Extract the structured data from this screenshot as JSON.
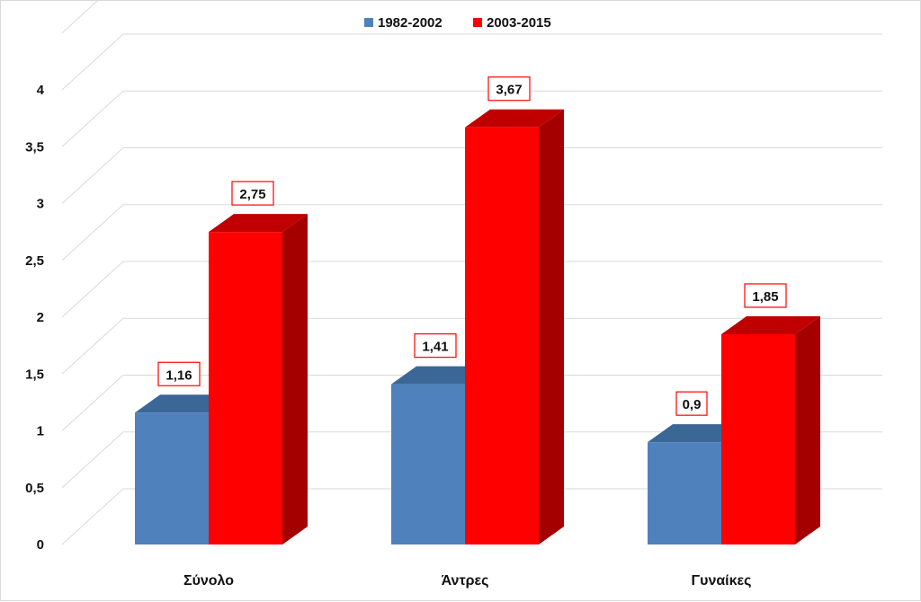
{
  "chart_data": {
    "type": "bar",
    "style": "3d-clustered-column",
    "categories": [
      "Σύνολο",
      "Άντρες",
      "Γυναίκες"
    ],
    "series": [
      {
        "name": "1982-2002",
        "values": [
          1.16,
          1.41,
          0.9
        ],
        "labels": [
          "1,16",
          "1,41",
          "0,9"
        ],
        "color": "#4f81bd",
        "top_color": "#3b6796",
        "side_color": "#385d8a"
      },
      {
        "name": "2003-2015",
        "values": [
          2.75,
          3.67,
          1.85
        ],
        "labels": [
          "2,75",
          "3,67",
          "1,85"
        ],
        "color": "#ff0000",
        "top_color": "#c00000",
        "side_color": "#a50000"
      }
    ],
    "ylim": [
      0,
      4
    ],
    "yticks": [
      0,
      0.5,
      1,
      1.5,
      2,
      2.5,
      3,
      3.5,
      4
    ],
    "ytick_labels": [
      "0",
      "0,5",
      "1",
      "1,5",
      "2",
      "2,5",
      "3",
      "3,5",
      "4"
    ],
    "title": "",
    "xlabel": "",
    "ylabel": "",
    "grid": true,
    "legend_position": "top",
    "data_label_border_color": "#ff0000"
  }
}
